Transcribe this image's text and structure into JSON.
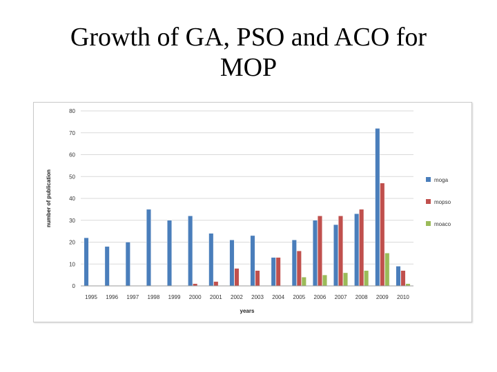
{
  "slide": {
    "title_line1": "Growth of GA, PSO and ACO for",
    "title_line2": "MOP"
  },
  "chart_data": {
    "type": "bar",
    "categories": [
      "1995",
      "1996",
      "1997",
      "1998",
      "1999",
      "2000",
      "2001",
      "2002",
      "2003",
      "2004",
      "2005",
      "2006",
      "2007",
      "2008",
      "2009",
      "2010"
    ],
    "series": [
      {
        "name": "moga",
        "color": "#4a7ebb",
        "values": [
          22,
          18,
          20,
          35,
          30,
          32,
          24,
          21,
          23,
          13,
          21,
          30,
          28,
          33,
          72,
          9
        ]
      },
      {
        "name": "mopso",
        "color": "#c0504d",
        "values": [
          0,
          0,
          0,
          0,
          0,
          1,
          2,
          8,
          7,
          13,
          16,
          32,
          32,
          35,
          47,
          7
        ]
      },
      {
        "name": "moaco",
        "color": "#9bbb59",
        "values": [
          0,
          0,
          0,
          0,
          0,
          0,
          0,
          0,
          0,
          0,
          4,
          5,
          6,
          7,
          15,
          1
        ]
      }
    ],
    "xlabel": "years",
    "ylabel": "number of publication",
    "ylim": [
      0,
      80
    ],
    "yticks": [
      0,
      10,
      20,
      30,
      40,
      50,
      60,
      70,
      80
    ],
    "grid": true,
    "legend": "right"
  }
}
